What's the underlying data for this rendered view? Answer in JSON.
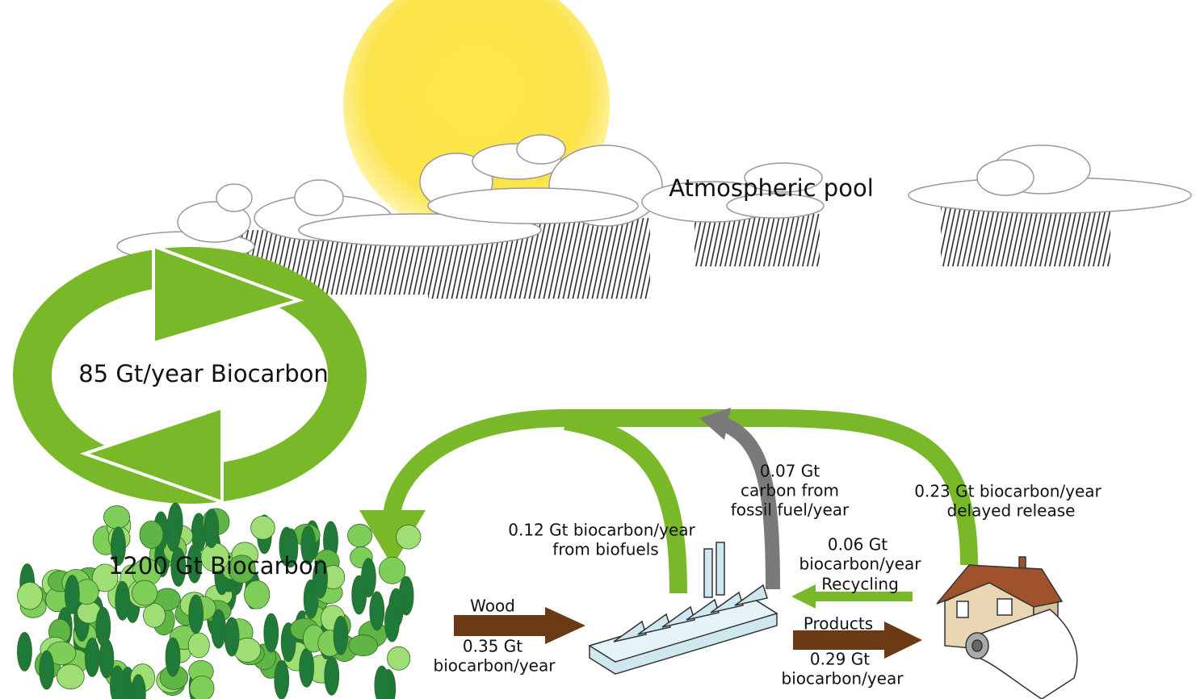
{
  "atmosphere": {
    "label": "Atmospheric pool"
  },
  "cycle": {
    "label": "85 Gt/year Biocarbon"
  },
  "forest": {
    "label": "1200 Gt Biocarbon"
  },
  "flows": [
    {
      "lines": [
        "0.07 Gt",
        "carbon from",
        "fossil fuel/year"
      ]
    },
    {
      "lines": [
        "0.23 Gt biocarbon/year",
        "delayed release"
      ]
    },
    {
      "lines": [
        "0.12 Gt biocarbon/year",
        "from biofuels"
      ]
    },
    {
      "lines": [
        "0.06 Gt",
        "biocarbon/year",
        "Recycling"
      ]
    },
    {
      "lines": [
        "Wood",
        "0.35 Gt",
        "biocarbon/year"
      ]
    },
    {
      "lines": [
        "Products",
        "0.29 Gt",
        "biocarbon/year"
      ]
    }
  ]
}
